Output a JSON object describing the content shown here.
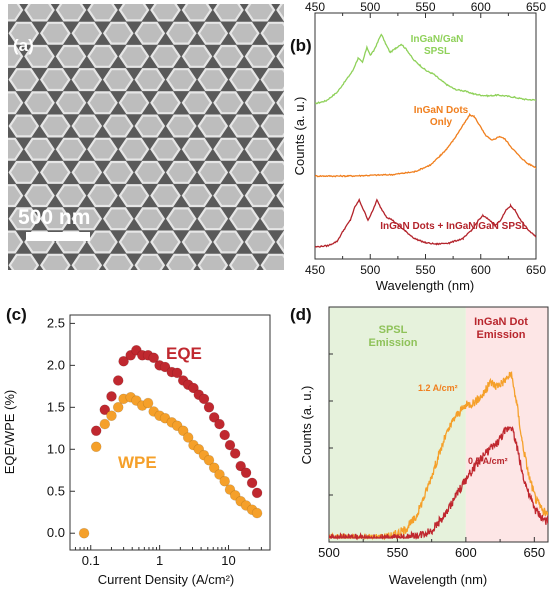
{
  "figure": {
    "colors": {
      "green": "#8fd15a",
      "orange": "#f07f1e",
      "red": "#b3232b",
      "eqe": "#c0282f",
      "wpe": "#f5a02a",
      "d_green_bg": "#e6f2dc",
      "d_red_bg": "#fde6e6",
      "d_label_green": "#8fc25a",
      "d_label_red": "#b8262d"
    }
  },
  "chart_data": [
    {
      "panel": "a",
      "type": "other",
      "label": "(a)",
      "scalebar_label": "500 nm"
    },
    {
      "panel": "b",
      "type": "line",
      "label": "(b)",
      "xlabel": "Wavelength (nm)",
      "ylabel": "Counts (a. u.)",
      "xlim": [
        450,
        650
      ],
      "x_ticks": [
        "450",
        "500",
        "550",
        "600",
        "650"
      ],
      "top_x_ticks": [
        "450",
        "500",
        "550",
        "600",
        "650"
      ],
      "annotations": [
        {
          "lines": [
            "InGaN/GaN",
            "SPSL"
          ],
          "color": "green"
        },
        {
          "lines": [
            "InGaN Dots",
            "Only"
          ],
          "color": "orange"
        },
        {
          "lines": [
            "InGaN Dots + InGaN/GaN SPSL"
          ],
          "color": "red"
        }
      ],
      "series": [
        {
          "color": "green",
          "offset": 2.0,
          "points": [
            [
              450,
              0.02
            ],
            [
              460,
              0.06
            ],
            [
              470,
              0.18
            ],
            [
              478,
              0.35
            ],
            [
              484,
              0.48
            ],
            [
              489,
              0.66
            ],
            [
              493,
              0.6
            ],
            [
              497,
              0.82
            ],
            [
              500,
              0.7
            ],
            [
              503,
              0.76
            ],
            [
              506,
              0.86
            ],
            [
              510,
              1.0
            ],
            [
              514,
              0.86
            ],
            [
              518,
              0.74
            ],
            [
              523,
              0.8
            ],
            [
              528,
              0.86
            ],
            [
              533,
              0.78
            ],
            [
              539,
              0.64
            ],
            [
              545,
              0.56
            ],
            [
              551,
              0.48
            ],
            [
              557,
              0.44
            ],
            [
              563,
              0.36
            ],
            [
              570,
              0.28
            ],
            [
              577,
              0.22
            ],
            [
              585,
              0.2
            ],
            [
              593,
              0.16
            ],
            [
              600,
              0.14
            ],
            [
              607,
              0.13
            ],
            [
              615,
              0.14
            ],
            [
              622,
              0.13
            ],
            [
              630,
              0.11
            ],
            [
              640,
              0.08
            ],
            [
              650,
              0.07
            ]
          ]
        },
        {
          "color": "orange",
          "offset": 1.0,
          "points": [
            [
              450,
              0.0
            ],
            [
              480,
              0.0
            ],
            [
              520,
              0.02
            ],
            [
              540,
              0.06
            ],
            [
              555,
              0.16
            ],
            [
              563,
              0.28
            ],
            [
              569,
              0.38
            ],
            [
              575,
              0.5
            ],
            [
              580,
              0.62
            ],
            [
              585,
              0.74
            ],
            [
              590,
              0.86
            ],
            [
              594,
              0.84
            ],
            [
              598,
              0.74
            ],
            [
              604,
              0.58
            ],
            [
              610,
              0.5
            ],
            [
              617,
              0.56
            ],
            [
              622,
              0.52
            ],
            [
              628,
              0.4
            ],
            [
              635,
              0.28
            ],
            [
              642,
              0.18
            ],
            [
              650,
              0.12
            ]
          ]
        },
        {
          "color": "red",
          "offset": 0.0,
          "points": [
            [
              450,
              0.0
            ],
            [
              462,
              0.02
            ],
            [
              470,
              0.08
            ],
            [
              476,
              0.24
            ],
            [
              482,
              0.38
            ],
            [
              486,
              0.56
            ],
            [
              490,
              0.66
            ],
            [
              494,
              0.52
            ],
            [
              498,
              0.38
            ],
            [
              502,
              0.5
            ],
            [
              506,
              0.66
            ],
            [
              510,
              0.54
            ],
            [
              515,
              0.42
            ],
            [
              520,
              0.38
            ],
            [
              526,
              0.3
            ],
            [
              532,
              0.22
            ],
            [
              540,
              0.12
            ],
            [
              550,
              0.06
            ],
            [
              560,
              0.04
            ],
            [
              572,
              0.06
            ],
            [
              584,
              0.12
            ],
            [
              592,
              0.24
            ],
            [
              598,
              0.38
            ],
            [
              602,
              0.44
            ],
            [
              608,
              0.38
            ],
            [
              613,
              0.3
            ],
            [
              618,
              0.38
            ],
            [
              623,
              0.52
            ],
            [
              627,
              0.58
            ],
            [
              631,
              0.52
            ],
            [
              636,
              0.38
            ],
            [
              643,
              0.24
            ],
            [
              650,
              0.14
            ]
          ]
        }
      ]
    },
    {
      "panel": "c",
      "type": "scatter",
      "label": "(c)",
      "xlabel": "Current Density (A/cm²)",
      "ylabel": "EQE/WPE (%)",
      "xscale": "log",
      "xlim": [
        0.05,
        40
      ],
      "ylim": [
        -0.2,
        2.6
      ],
      "y_ticks": [
        "0.0",
        "0.5",
        "1.0",
        "1.5",
        "2.0",
        "2.5"
      ],
      "x_ticks": [
        "0.1",
        "1",
        "10"
      ],
      "series": [
        {
          "name": "EQE",
          "color": "eqe",
          "x": [
            0.12,
            0.16,
            0.2,
            0.25,
            0.3,
            0.38,
            0.46,
            0.56,
            0.68,
            0.82,
            1.0,
            1.2,
            1.5,
            1.8,
            2.2,
            2.6,
            3.1,
            3.7,
            4.4,
            5.2,
            6.2,
            7.4,
            8.8,
            10.5,
            12.5,
            15,
            18,
            22,
            26
          ],
          "y": [
            1.22,
            1.47,
            1.63,
            1.82,
            2.05,
            2.12,
            2.18,
            2.12,
            2.12,
            2.09,
            2.0,
            1.98,
            1.92,
            1.91,
            1.82,
            1.77,
            1.73,
            1.65,
            1.6,
            1.5,
            1.38,
            1.3,
            1.17,
            1.05,
            0.95,
            0.8,
            0.72,
            0.6,
            0.48
          ]
        },
        {
          "name": "WPE",
          "color": "wpe",
          "x": [
            0.08,
            0.12,
            0.16,
            0.2,
            0.25,
            0.3,
            0.38,
            0.46,
            0.56,
            0.68,
            0.82,
            1.0,
            1.2,
            1.5,
            1.8,
            2.2,
            2.6,
            3.1,
            3.7,
            4.4,
            5.2,
            6.2,
            7.4,
            8.8,
            10.5,
            12.5,
            15,
            18,
            22,
            26
          ],
          "y": [
            0.0,
            1.03,
            1.3,
            1.4,
            1.5,
            1.6,
            1.62,
            1.58,
            1.52,
            1.55,
            1.45,
            1.4,
            1.37,
            1.32,
            1.28,
            1.22,
            1.14,
            1.05,
            1.0,
            0.93,
            0.87,
            0.78,
            0.7,
            0.62,
            0.52,
            0.45,
            0.38,
            0.33,
            0.28,
            0.24
          ]
        }
      ]
    },
    {
      "panel": "d",
      "type": "line",
      "label": "(d)",
      "xlabel": "Wavelength (nm)",
      "ylabel": "Counts (a. u.)",
      "xlim": [
        500,
        660
      ],
      "x_ticks": [
        "500",
        "550",
        "600",
        "650"
      ],
      "regions": [
        {
          "from": 500,
          "to": 600,
          "lines": [
            "SPSL",
            "Emission"
          ],
          "fill": "d_green_bg",
          "text": "d_label_green"
        },
        {
          "from": 600,
          "to": 660,
          "lines": [
            "InGaN Dot",
            "Emission"
          ],
          "fill": "d_red_bg",
          "text": "d_label_red"
        }
      ],
      "series": [
        {
          "name": "1.2 A/cm²",
          "color": "wpe",
          "points": [
            [
              500,
              0.0
            ],
            [
              530,
              0.0
            ],
            [
              545,
              0.01
            ],
            [
              555,
              0.04
            ],
            [
              563,
              0.1
            ],
            [
              570,
              0.22
            ],
            [
              578,
              0.38
            ],
            [
              585,
              0.52
            ],
            [
              592,
              0.62
            ],
            [
              600,
              0.68
            ],
            [
              607,
              0.7
            ],
            [
              613,
              0.74
            ],
            [
              618,
              0.8
            ],
            [
              622,
              0.78
            ],
            [
              627,
              0.8
            ],
            [
              633,
              0.84
            ],
            [
              637,
              0.7
            ],
            [
              641,
              0.5
            ],
            [
              646,
              0.32
            ],
            [
              651,
              0.2
            ],
            [
              656,
              0.14
            ],
            [
              660,
              0.12
            ]
          ]
        },
        {
          "name": "0.5 A/cm²",
          "color": "eqe",
          "points": [
            [
              500,
              0.0
            ],
            [
              555,
              0.0
            ],
            [
              565,
              0.01
            ],
            [
              575,
              0.04
            ],
            [
              585,
              0.12
            ],
            [
              593,
              0.22
            ],
            [
              600,
              0.3
            ],
            [
              608,
              0.38
            ],
            [
              615,
              0.44
            ],
            [
              622,
              0.48
            ],
            [
              628,
              0.54
            ],
            [
              633,
              0.58
            ],
            [
              637,
              0.48
            ],
            [
              641,
              0.34
            ],
            [
              646,
              0.22
            ],
            [
              651,
              0.14
            ],
            [
              656,
              0.1
            ],
            [
              660,
              0.08
            ]
          ]
        }
      ]
    }
  ]
}
